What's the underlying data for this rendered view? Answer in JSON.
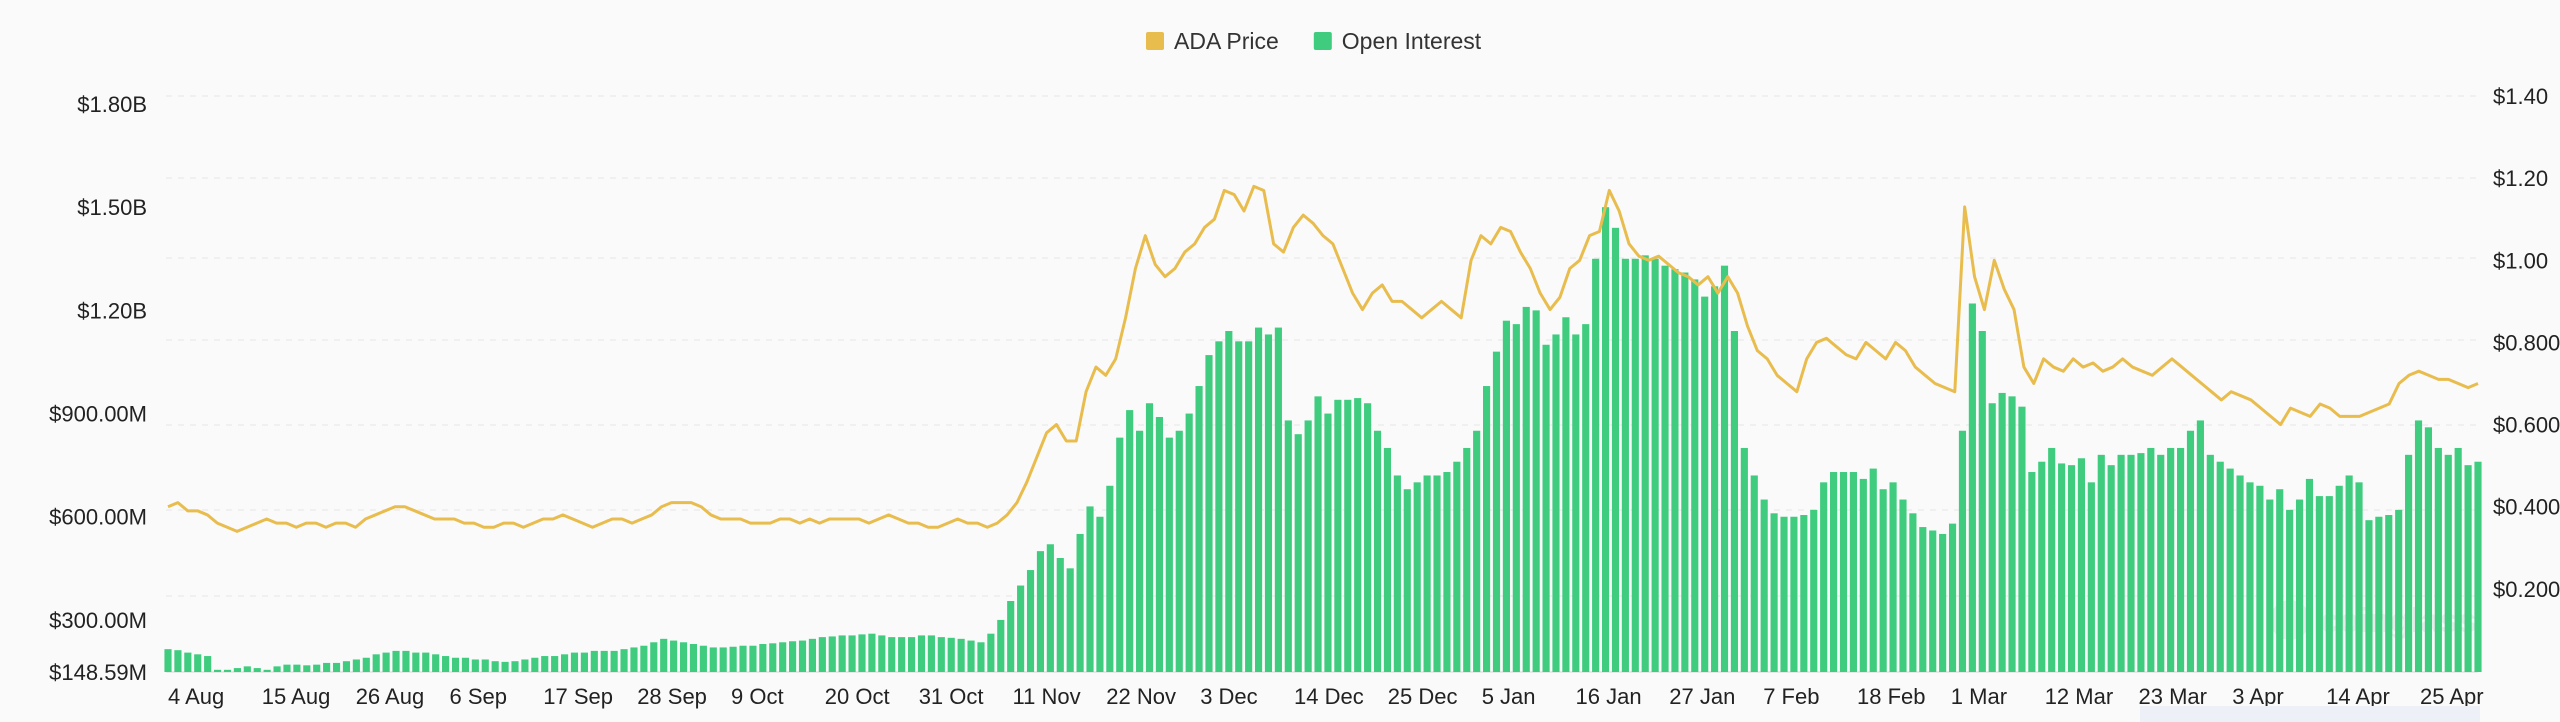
{
  "chart_data": {
    "type": "bar",
    "title": "",
    "legend": {
      "placement": "top-center",
      "items": [
        {
          "name": "ADA Price",
          "color": "#e8bd4e"
        },
        {
          "name": "Open Interest",
          "color": "#3fcc7f"
        }
      ]
    },
    "grid": true,
    "left_axis": {
      "ticks": [
        "$148.59M",
        "$300.00M",
        "$600.00M",
        "$900.00M",
        "$1.20B",
        "$1.50B",
        "$1.80B"
      ],
      "tick_values": [
        148.59,
        300,
        600,
        900,
        1200,
        1500,
        1800
      ],
      "range": [
        148.59,
        1800
      ],
      "unit": "millions USD"
    },
    "right_axis": {
      "ticks": [
        "$0.200",
        "$0.400",
        "$0.600",
        "$0.800",
        "$1.00",
        "$1.20",
        "$1.40"
      ],
      "tick_values": [
        0.2,
        0.4,
        0.6,
        0.8,
        1.0,
        1.2,
        1.4
      ],
      "range": [
        0.0,
        1.4
      ],
      "unit": "USD"
    },
    "x_ticks": [
      "4 Aug",
      "15 Aug",
      "26 Aug",
      "6 Sep",
      "17 Sep",
      "28 Sep",
      "9 Oct",
      "20 Oct",
      "31 Oct",
      "11 Nov",
      "22 Nov",
      "3 Dec",
      "14 Dec",
      "25 Dec",
      "5 Jan",
      "16 Jan",
      "27 Jan",
      "7 Feb",
      "18 Feb",
      "1 Mar",
      "12 Mar",
      "23 Mar",
      "3 Apr",
      "14 Apr",
      "25 Apr"
    ],
    "series": [
      {
        "name": "Open Interest",
        "kind": "bar",
        "axis": "left",
        "color": "#3fcc7f",
        "values": [
          215,
          212,
          205,
          200,
          195,
          155,
          155,
          160,
          165,
          160,
          155,
          165,
          170,
          170,
          168,
          170,
          175,
          175,
          180,
          185,
          190,
          200,
          205,
          210,
          210,
          205,
          205,
          200,
          195,
          190,
          190,
          185,
          185,
          180,
          178,
          180,
          185,
          190,
          195,
          195,
          200,
          205,
          205,
          210,
          210,
          210,
          215,
          220,
          225,
          235,
          245,
          240,
          235,
          230,
          225,
          220,
          220,
          222,
          225,
          225,
          230,
          232,
          235,
          238,
          240,
          245,
          250,
          252,
          255,
          255,
          258,
          260,
          255,
          250,
          250,
          250,
          255,
          255,
          250,
          248,
          245,
          240,
          235,
          260,
          300,
          355,
          400,
          445,
          500,
          520,
          480,
          450,
          550,
          630,
          600,
          690,
          830,
          910,
          850,
          930,
          890,
          830,
          850,
          900,
          980,
          1070,
          1110,
          1140,
          1110,
          1110,
          1150,
          1130,
          1150,
          880,
          840,
          880,
          950,
          900,
          940,
          940,
          945,
          930,
          850,
          800,
          720,
          680,
          700,
          720,
          720,
          730,
          760,
          800,
          850,
          980,
          1080,
          1170,
          1160,
          1210,
          1200,
          1100,
          1130,
          1180,
          1130,
          1160,
          1350,
          1500,
          1440,
          1350,
          1350,
          1360,
          1350,
          1330,
          1320,
          1310,
          1290,
          1240,
          1270,
          1330,
          1140,
          800,
          720,
          650,
          610,
          600,
          600,
          605,
          620,
          700,
          730,
          730,
          730,
          710,
          740,
          680,
          700,
          650,
          610,
          570,
          560,
          550,
          580,
          850,
          1220,
          1140,
          930,
          960,
          950,
          920,
          730,
          760,
          800,
          755,
          750,
          770,
          700,
          780,
          750,
          780,
          780,
          785,
          800,
          780,
          800,
          800,
          850,
          880,
          780,
          760,
          740,
          720,
          700,
          690,
          650,
          680,
          620,
          650,
          710,
          660,
          660,
          690,
          720,
          700,
          590,
          600,
          605,
          620,
          780,
          880,
          860,
          800,
          780,
          800,
          750,
          760
        ]
      },
      {
        "name": "ADA Price",
        "kind": "line",
        "axis": "right",
        "color": "#e8bd4e",
        "values": [
          0.4,
          0.41,
          0.39,
          0.39,
          0.38,
          0.36,
          0.35,
          0.34,
          0.35,
          0.36,
          0.37,
          0.36,
          0.36,
          0.35,
          0.36,
          0.36,
          0.35,
          0.36,
          0.36,
          0.35,
          0.37,
          0.38,
          0.39,
          0.4,
          0.4,
          0.39,
          0.38,
          0.37,
          0.37,
          0.37,
          0.36,
          0.36,
          0.35,
          0.35,
          0.36,
          0.36,
          0.35,
          0.36,
          0.37,
          0.37,
          0.38,
          0.37,
          0.36,
          0.35,
          0.36,
          0.37,
          0.37,
          0.36,
          0.37,
          0.38,
          0.4,
          0.41,
          0.41,
          0.41,
          0.4,
          0.38,
          0.37,
          0.37,
          0.37,
          0.36,
          0.36,
          0.36,
          0.37,
          0.37,
          0.36,
          0.37,
          0.36,
          0.37,
          0.37,
          0.37,
          0.37,
          0.36,
          0.37,
          0.38,
          0.37,
          0.36,
          0.36,
          0.35,
          0.35,
          0.36,
          0.37,
          0.36,
          0.36,
          0.35,
          0.36,
          0.38,
          0.41,
          0.46,
          0.52,
          0.58,
          0.6,
          0.56,
          0.56,
          0.68,
          0.74,
          0.72,
          0.76,
          0.86,
          0.98,
          1.06,
          0.99,
          0.96,
          0.98,
          1.02,
          1.04,
          1.08,
          1.1,
          1.17,
          1.16,
          1.12,
          1.18,
          1.17,
          1.04,
          1.02,
          1.08,
          1.11,
          1.09,
          1.06,
          1.04,
          0.98,
          0.92,
          0.88,
          0.92,
          0.94,
          0.9,
          0.9,
          0.88,
          0.86,
          0.88,
          0.9,
          0.88,
          0.86,
          1.0,
          1.06,
          1.04,
          1.08,
          1.07,
          1.02,
          0.98,
          0.92,
          0.88,
          0.91,
          0.98,
          1.0,
          1.06,
          1.07,
          1.17,
          1.12,
          1.04,
          1.01,
          1.0,
          1.01,
          0.99,
          0.97,
          0.96,
          0.94,
          0.96,
          0.92,
          0.96,
          0.92,
          0.84,
          0.78,
          0.76,
          0.72,
          0.7,
          0.68,
          0.76,
          0.8,
          0.81,
          0.79,
          0.77,
          0.76,
          0.8,
          0.78,
          0.76,
          0.8,
          0.78,
          0.74,
          0.72,
          0.7,
          0.69,
          0.68,
          1.13,
          0.96,
          0.88,
          1.0,
          0.93,
          0.88,
          0.74,
          0.7,
          0.76,
          0.74,
          0.73,
          0.76,
          0.74,
          0.75,
          0.73,
          0.74,
          0.76,
          0.74,
          0.73,
          0.72,
          0.74,
          0.76,
          0.74,
          0.72,
          0.7,
          0.68,
          0.66,
          0.68,
          0.67,
          0.66,
          0.64,
          0.62,
          0.6,
          0.64,
          0.63,
          0.62,
          0.65,
          0.64,
          0.62,
          0.62,
          0.62,
          0.63,
          0.64,
          0.65,
          0.7,
          0.72,
          0.73,
          0.72,
          0.71,
          0.71,
          0.7,
          0.69,
          0.7
        ]
      }
    ]
  },
  "watermark_text": "coinglass"
}
